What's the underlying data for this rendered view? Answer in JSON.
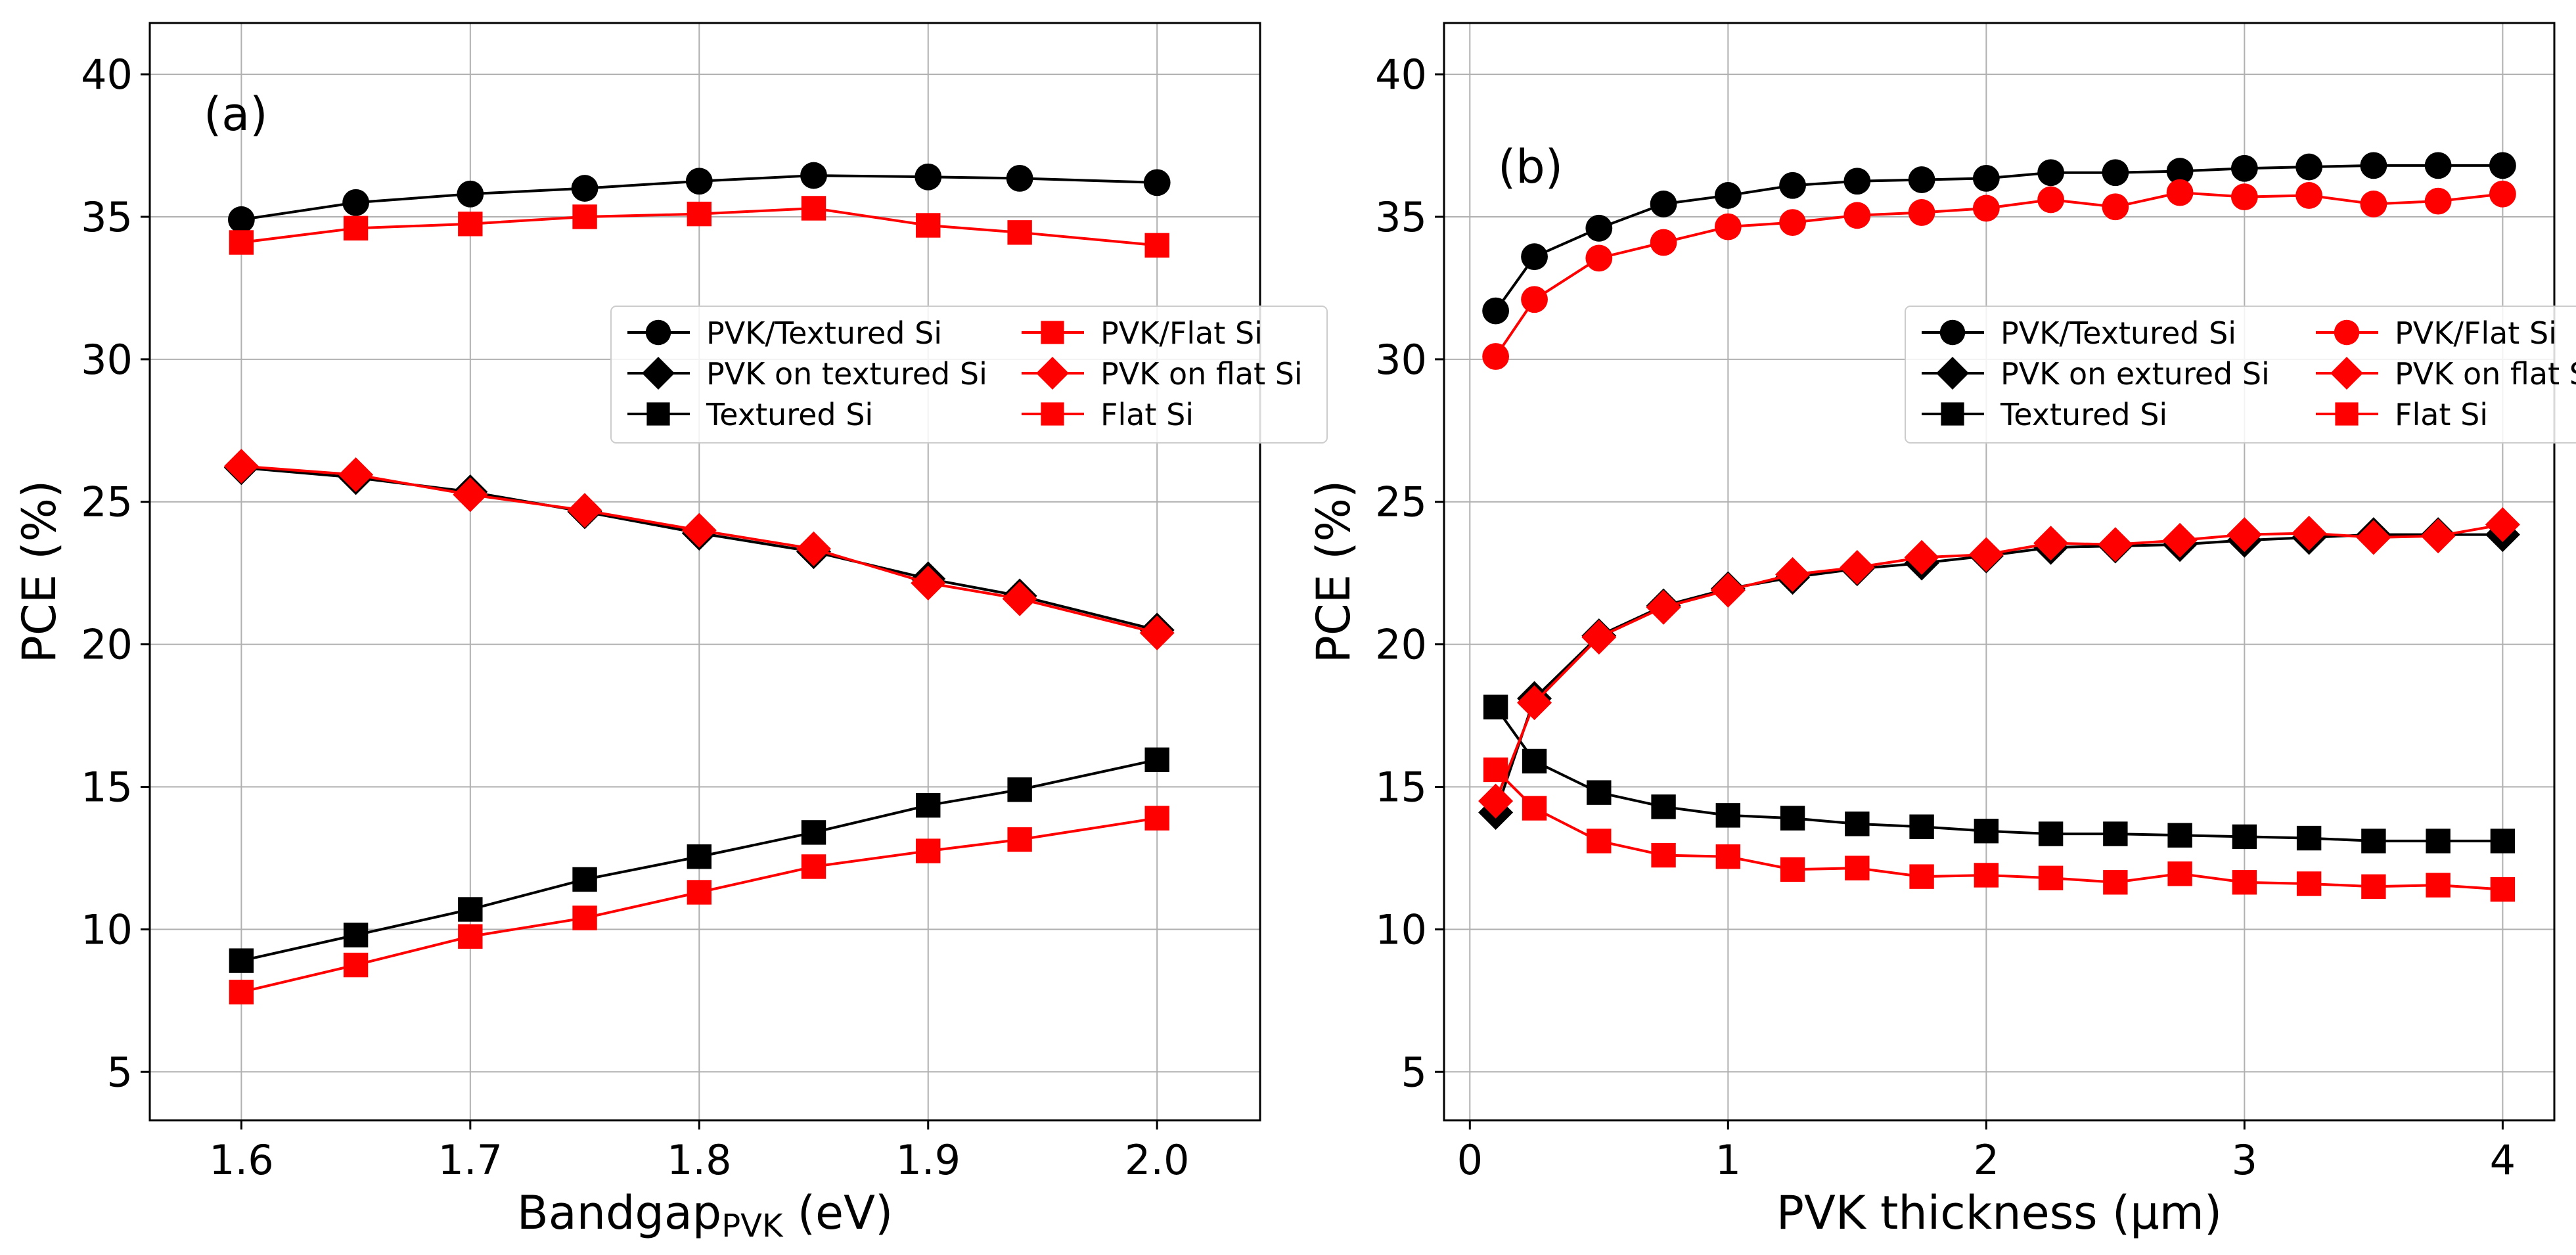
{
  "chart_data": [
    {
      "type": "line",
      "panel_label": "(a)",
      "xlabel_main": "Bandgap",
      "xlabel_sub": "PVK",
      "xlabel_unit": " (eV)",
      "ylabel": "PCE (%)",
      "xlim": [
        1.56,
        2.045
      ],
      "ylim": [
        3.3,
        41.8
      ],
      "xticks": [
        1.6,
        1.7,
        1.8,
        1.9,
        2.0
      ],
      "xtick_labels": [
        "1.6",
        "1.7",
        "1.8",
        "1.9",
        "2.0"
      ],
      "yticks": [
        5,
        10,
        15,
        20,
        25,
        30,
        35,
        40
      ],
      "ytick_labels": [
        "5",
        "10",
        "15",
        "20",
        "25",
        "30",
        "35",
        "40"
      ],
      "grid": true,
      "legend_position": "center-right",
      "x": [
        1.6,
        1.65,
        1.7,
        1.75,
        1.8,
        1.85,
        1.9,
        1.94,
        2.0
      ],
      "series": [
        {
          "name": "PVK/Textured Si",
          "color": "#000000",
          "marker": "circle",
          "values": [
            34.9,
            35.5,
            35.8,
            36.0,
            36.25,
            36.45,
            36.4,
            36.35,
            36.2
          ]
        },
        {
          "name": "PVK on textured Si",
          "color": "#000000",
          "marker": "diamond",
          "values": [
            26.2,
            25.85,
            25.35,
            24.65,
            23.9,
            23.25,
            22.3,
            21.7,
            20.5
          ]
        },
        {
          "name": "Textured Si",
          "color": "#000000",
          "marker": "square",
          "values": [
            8.9,
            9.8,
            10.7,
            11.75,
            12.55,
            13.4,
            14.35,
            14.9,
            15.95
          ]
        },
        {
          "name": "PVK/Flat Si",
          "color": "#ff0000",
          "marker": "square",
          "values": [
            34.1,
            34.6,
            34.75,
            35.0,
            35.1,
            35.3,
            34.7,
            34.45,
            34.0
          ]
        },
        {
          "name": "PVK on flat Si",
          "color": "#ff0000",
          "marker": "diamond",
          "values": [
            26.25,
            25.95,
            25.25,
            24.7,
            24.0,
            23.35,
            22.15,
            21.6,
            20.4
          ]
        },
        {
          "name": "Flat Si",
          "color": "#ff0000",
          "marker": "square",
          "values": [
            7.8,
            8.75,
            9.75,
            10.4,
            11.3,
            12.2,
            12.75,
            13.15,
            13.9
          ]
        }
      ]
    },
    {
      "type": "line",
      "panel_label": "(b)",
      "xlabel_main": "PVK thickness (μm)",
      "xlabel_sub": "",
      "xlabel_unit": "",
      "ylabel": "PCE (%)",
      "xlim": [
        -0.1,
        4.2
      ],
      "ylim": [
        3.3,
        41.8
      ],
      "xticks": [
        0,
        1,
        2,
        3,
        4
      ],
      "xtick_labels": [
        "0",
        "1",
        "2",
        "3",
        "4"
      ],
      "yticks": [
        5,
        10,
        15,
        20,
        25,
        30,
        35,
        40
      ],
      "ytick_labels": [
        "5",
        "10",
        "15",
        "20",
        "25",
        "30",
        "35",
        "40"
      ],
      "grid": true,
      "legend_position": "center-right",
      "x": [
        0.1,
        0.25,
        0.5,
        0.75,
        1.0,
        1.25,
        1.5,
        1.75,
        2.0,
        2.25,
        2.5,
        2.75,
        3.0,
        3.25,
        3.5,
        3.75,
        4.0
      ],
      "series": [
        {
          "name": "PVK/Textured Si",
          "color": "#000000",
          "marker": "circle",
          "values": [
            31.7,
            33.6,
            34.6,
            35.45,
            35.75,
            36.1,
            36.25,
            36.3,
            36.35,
            36.55,
            36.55,
            36.6,
            36.7,
            36.75,
            36.8,
            36.8,
            36.8
          ]
        },
        {
          "name": "PVK on extured Si",
          "color": "#000000",
          "marker": "diamond",
          "values": [
            14.1,
            18.1,
            20.3,
            21.35,
            21.95,
            22.35,
            22.65,
            22.85,
            23.1,
            23.4,
            23.45,
            23.5,
            23.65,
            23.75,
            23.85,
            23.85,
            23.85
          ]
        },
        {
          "name": "Textured Si",
          "color": "#000000",
          "marker": "square",
          "values": [
            17.8,
            15.9,
            14.8,
            14.3,
            14.0,
            13.9,
            13.7,
            13.6,
            13.45,
            13.35,
            13.35,
            13.3,
            13.25,
            13.2,
            13.1,
            13.1,
            13.1
          ]
        },
        {
          "name": "PVK/Flat Si",
          "color": "#ff0000",
          "marker": "circle",
          "values": [
            30.1,
            32.1,
            33.55,
            34.1,
            34.65,
            34.8,
            35.05,
            35.15,
            35.3,
            35.6,
            35.35,
            35.85,
            35.7,
            35.75,
            35.45,
            35.55,
            35.8
          ]
        },
        {
          "name": "PVK on flat Si",
          "color": "#ff0000",
          "marker": "diamond",
          "values": [
            14.5,
            17.95,
            20.25,
            21.3,
            21.9,
            22.45,
            22.7,
            23.05,
            23.15,
            23.55,
            23.5,
            23.65,
            23.85,
            23.9,
            23.75,
            23.8,
            24.2
          ]
        },
        {
          "name": "Flat Si",
          "color": "#ff0000",
          "marker": "square",
          "values": [
            15.6,
            14.25,
            13.1,
            12.6,
            12.55,
            12.1,
            12.15,
            11.85,
            11.9,
            11.8,
            11.65,
            11.95,
            11.65,
            11.6,
            11.5,
            11.55,
            11.4
          ]
        }
      ]
    }
  ]
}
